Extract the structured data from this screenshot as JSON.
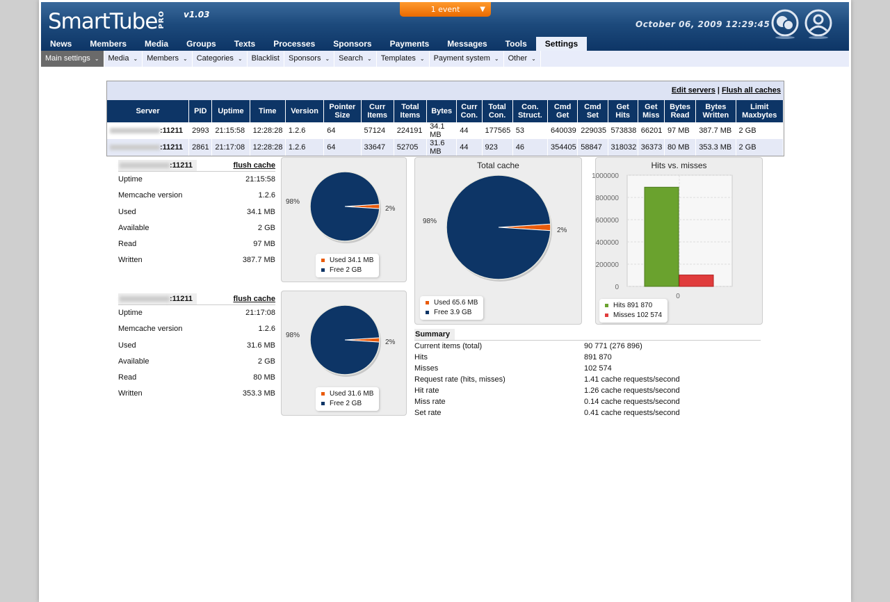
{
  "app": {
    "logo_text": "SmartTube",
    "logo_pro": "PRO",
    "version": "v1.03",
    "event_label": "1 event",
    "datetime": "October 06, 2009 12:29:45"
  },
  "main_nav": [
    "News",
    "Members",
    "Media",
    "Groups",
    "Texts",
    "Processes",
    "Sponsors",
    "Payments",
    "Messages",
    "Tools",
    "Settings"
  ],
  "main_nav_active": "Settings",
  "sub_nav": [
    {
      "label": "Main settings",
      "dropdown": true,
      "active": true
    },
    {
      "label": "Media",
      "dropdown": true
    },
    {
      "label": "Members",
      "dropdown": true
    },
    {
      "label": "Categories",
      "dropdown": true
    },
    {
      "label": "Blacklist",
      "dropdown": false
    },
    {
      "label": "Sponsors",
      "dropdown": true
    },
    {
      "label": "Search",
      "dropdown": true
    },
    {
      "label": "Templates",
      "dropdown": true
    },
    {
      "label": "Payment system",
      "dropdown": true
    },
    {
      "label": "Other",
      "dropdown": true
    }
  ],
  "servers_table": {
    "edit_servers": "Edit servers",
    "separator": "|",
    "flush_all": "Flush all caches",
    "headers": [
      "Server",
      "PID",
      "Uptime",
      "Time",
      "Version",
      "Pointer\nSize",
      "Curr\nItems",
      "Total\nItems",
      "Bytes",
      "Curr\nCon.",
      "Total\nCon.",
      "Con.\nStruct.",
      "Cmd\nGet",
      "Cmd\nSet",
      "Get\nHits",
      "Get\nMiss",
      "Bytes\nRead",
      "Bytes\nWritten",
      "Limit\nMaxbytes"
    ],
    "rows": [
      [
        ":11211",
        "2993",
        "21:15:58",
        "12:28:28",
        "1.2.6",
        "64",
        "57124",
        "224191",
        "34.1 MB",
        "44",
        "177565",
        "53",
        "640039",
        "229035",
        "573838",
        "66201",
        "97 MB",
        "387.7 MB",
        "2 GB"
      ],
      [
        ":11211",
        "2861",
        "21:17:08",
        "12:28:28",
        "1.2.6",
        "64",
        "33647",
        "52705",
        "31.6 MB",
        "44",
        "923",
        "46",
        "354405",
        "58847",
        "318032",
        "36373",
        "80 MB",
        "353.3 MB",
        "2 GB"
      ]
    ]
  },
  "server_info": [
    {
      "port": ":11211",
      "flush": "flush cache",
      "rows": [
        [
          "Uptime",
          "21:15:58"
        ],
        [
          "Memcache version",
          "1.2.6"
        ],
        [
          "Used",
          "34.1 MB"
        ],
        [
          "Available",
          "2 GB"
        ],
        [
          "Read",
          "97 MB"
        ],
        [
          "Written",
          "387.7 MB"
        ]
      ],
      "pie": {
        "pct_free": "98%",
        "pct_used": "2%",
        "legend": [
          "Used 34.1 MB",
          "Free 2 GB"
        ]
      }
    },
    {
      "port": ":11211",
      "flush": "flush cache",
      "rows": [
        [
          "Uptime",
          "21:17:08"
        ],
        [
          "Memcache version",
          "1.2.6"
        ],
        [
          "Used",
          "31.6 MB"
        ],
        [
          "Available",
          "2 GB"
        ],
        [
          "Read",
          "80 MB"
        ],
        [
          "Written",
          "353.3 MB"
        ]
      ],
      "pie": {
        "pct_free": "98%",
        "pct_used": "2%",
        "legend": [
          "Used 31.6 MB",
          "Free 2 GB"
        ]
      }
    }
  ],
  "colors": {
    "used": "#e95b0c",
    "free": "#0d3566",
    "hits": "#6aa22e",
    "misses": "#e03c3c",
    "nav": "#0d3566"
  },
  "chart_data": [
    {
      "type": "pie",
      "title": "",
      "slices": [
        {
          "label": "Used 34.1 MB",
          "value": 2,
          "label_text": "2%"
        },
        {
          "label": "Free 2 GB",
          "value": 98,
          "label_text": "98%"
        }
      ]
    },
    {
      "type": "pie",
      "title": "",
      "slices": [
        {
          "label": "Used 31.6 MB",
          "value": 2,
          "label_text": "2%"
        },
        {
          "label": "Free 2 GB",
          "value": 98,
          "label_text": "98%"
        }
      ]
    },
    {
      "type": "pie",
      "title": "Total cache",
      "slices": [
        {
          "label": "Used 65.6 MB",
          "value": 2,
          "label_text": "2%"
        },
        {
          "label": "Free 3.9 GB",
          "value": 98,
          "label_text": "98%"
        }
      ]
    },
    {
      "type": "bar",
      "title": "Hits vs. misses",
      "categories": [
        "0"
      ],
      "series": [
        {
          "name": "Hits 891 870",
          "values": [
            891870
          ]
        },
        {
          "name": "Misses 102 574",
          "values": [
            102574
          ]
        }
      ],
      "ylim": [
        0,
        1000000
      ],
      "yticks": [
        "0",
        "200000",
        "400000",
        "600000",
        "800000",
        "1000000"
      ],
      "grid": true
    }
  ],
  "summary": {
    "title": "Summary",
    "rows": [
      [
        "Current items (total)",
        "90 771 (276 896)"
      ],
      [
        "Hits",
        "891 870"
      ],
      [
        "Misses",
        "102 574"
      ],
      [
        "Request rate (hits, misses)",
        "1.41 cache requests/second"
      ],
      [
        "Hit rate",
        "1.26 cache requests/second"
      ],
      [
        "Miss rate",
        "0.14 cache requests/second"
      ],
      [
        "Set rate",
        "0.41 cache requests/second"
      ]
    ]
  }
}
